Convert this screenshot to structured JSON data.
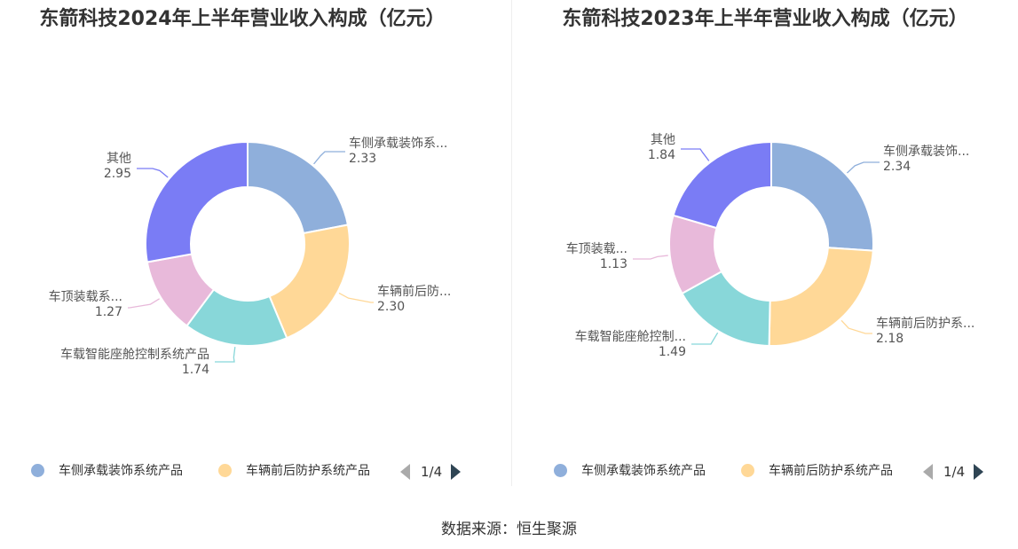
{
  "source_note": "数据来源：恒生聚源",
  "chart_data": [
    {
      "type": "pie",
      "title": "东箭科技2024年上半年营业收入构成（亿元）",
      "slices": [
        {
          "name": "车侧承载装饰系统产品",
          "label": "车侧承载装饰系...",
          "value": 2.33,
          "display": "2.33",
          "color": "#8fafdb"
        },
        {
          "name": "车辆前后防护系统产品",
          "label": "车辆前后防...",
          "value": 2.3,
          "display": "2.30",
          "color": "#ffd897"
        },
        {
          "name": "车载智能座舱控制系统产品",
          "label": "车载智能座舱控制系统产品",
          "value": 1.74,
          "display": "1.74",
          "color": "#88d7d9"
        },
        {
          "name": "车顶装载系统产品",
          "label": "车顶装载系...",
          "value": 1.27,
          "display": "1.27",
          "color": "#e8b9da"
        },
        {
          "name": "其他",
          "label": "其他",
          "value": 2.95,
          "display": "2.95",
          "color": "#7a7cf5"
        }
      ],
      "legend": {
        "items": [
          {
            "name": "车侧承载装饰系统产品",
            "color": "#8fafdb"
          },
          {
            "name": "车辆前后防护系统产品",
            "color": "#ffd897"
          }
        ],
        "page": "1/4",
        "placement": "bottom"
      }
    },
    {
      "type": "pie",
      "title": "东箭科技2023年上半年营业收入构成（亿元）",
      "slices": [
        {
          "name": "车侧承载装饰系统产品",
          "label": "车侧承载装饰...",
          "value": 2.34,
          "display": "2.34",
          "color": "#8fafdb"
        },
        {
          "name": "车辆前后防护系统产品",
          "label": "车辆前后防护系...",
          "value": 2.18,
          "display": "2.18",
          "color": "#ffd897"
        },
        {
          "name": "车载智能座舱控制系统产品",
          "label": "车载智能座舱控制...",
          "value": 1.49,
          "display": "1.49",
          "color": "#88d7d9"
        },
        {
          "name": "车顶装载系统产品",
          "label": "车顶装载...",
          "value": 1.13,
          "display": "1.13",
          "color": "#e8b9da"
        },
        {
          "name": "其他",
          "label": "其他",
          "value": 1.84,
          "display": "1.84",
          "color": "#7a7cf5"
        }
      ],
      "legend": {
        "items": [
          {
            "name": "车侧承载装饰系统产品",
            "color": "#8fafdb"
          },
          {
            "name": "车辆前后防护系统产品",
            "color": "#ffd897"
          }
        ],
        "page": "1/4",
        "placement": "bottom"
      }
    }
  ]
}
